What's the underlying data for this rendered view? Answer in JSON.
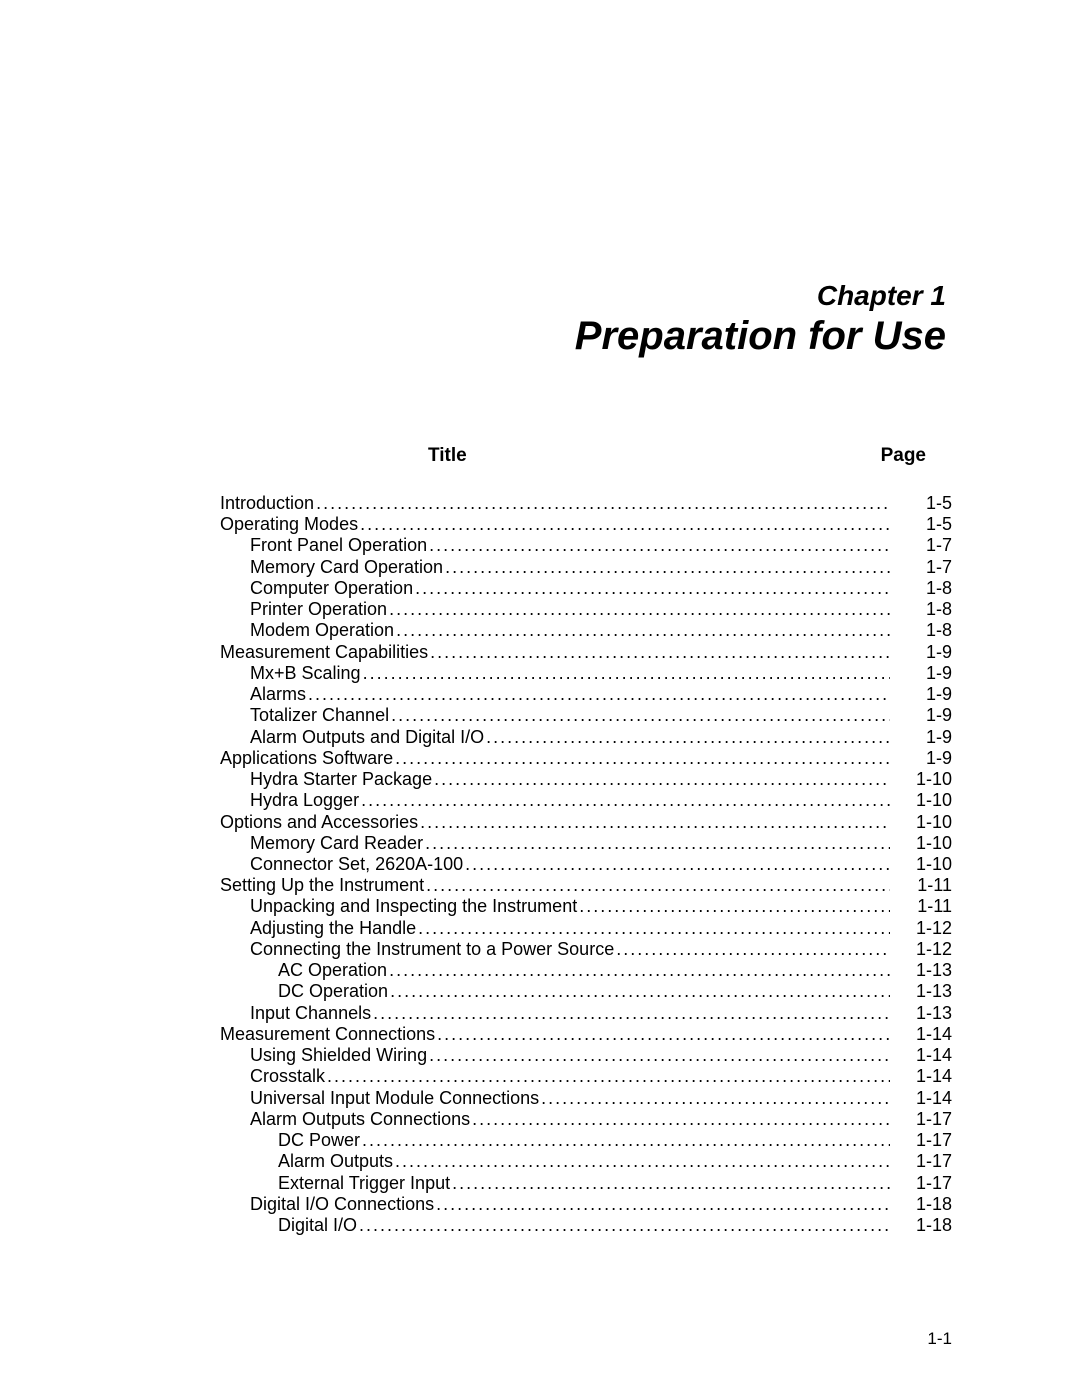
{
  "chapter_label": "Chapter 1",
  "chapter_title": "Preparation for Use",
  "header_title": "Title",
  "header_page": "Page",
  "page_number": "1-1",
  "font_family": "Arial, Helvetica, sans-serif",
  "text_color": "#000000",
  "background_color": "#ffffff",
  "title_fontsize_pt": 30,
  "label_fontsize_pt": 21,
  "body_fontsize_pt": 14,
  "header_fontsize_pt": 14,
  "toc": [
    {
      "title": "Introduction",
      "page": "1-5",
      "level": 0
    },
    {
      "title": "Operating Modes",
      "page": "1-5",
      "level": 0
    },
    {
      "title": "Front Panel Operation",
      "page": "1-7",
      "level": 1
    },
    {
      "title": "Memory Card Operation",
      "page": "1-7",
      "level": 1
    },
    {
      "title": "Computer Operation",
      "page": "1-8",
      "level": 1
    },
    {
      "title": "Printer Operation",
      "page": "1-8",
      "level": 1
    },
    {
      "title": "Modem Operation",
      "page": "1-8",
      "level": 1
    },
    {
      "title": "Measurement Capabilities",
      "page": "1-9",
      "level": 0
    },
    {
      "title": "Mx+B Scaling",
      "page": "1-9",
      "level": 1
    },
    {
      "title": "Alarms",
      "page": "1-9",
      "level": 1
    },
    {
      "title": "Totalizer Channel",
      "page": "1-9",
      "level": 1
    },
    {
      "title": "Alarm Outputs and Digital I/O",
      "page": "1-9",
      "level": 1
    },
    {
      "title": "Applications Software",
      "page": "1-9",
      "level": 0
    },
    {
      "title": "Hydra Starter Package",
      "page": "1-10",
      "level": 1
    },
    {
      "title": "Hydra Logger",
      "page": "1-10",
      "level": 1
    },
    {
      "title": "Options and Accessories",
      "page": "1-10",
      "level": 0
    },
    {
      "title": "Memory Card Reader",
      "page": "1-10",
      "level": 1
    },
    {
      "title": "Connector Set, 2620A-100",
      "page": "1-10",
      "level": 1
    },
    {
      "title": "Setting Up the Instrument",
      "page": "1-11",
      "level": 0
    },
    {
      "title": "Unpacking and Inspecting the Instrument",
      "page": "1-11",
      "level": 1
    },
    {
      "title": "Adjusting the Handle",
      "page": "1-12",
      "level": 1
    },
    {
      "title": "Connecting the Instrument to a Power Source",
      "page": "1-12",
      "level": 1
    },
    {
      "title": "AC Operation",
      "page": "1-13",
      "level": 2
    },
    {
      "title": "DC Operation",
      "page": "1-13",
      "level": 2
    },
    {
      "title": "Input Channels",
      "page": "1-13",
      "level": 1
    },
    {
      "title": "Measurement Connections",
      "page": "1-14",
      "level": 0
    },
    {
      "title": "Using Shielded Wiring",
      "page": "1-14",
      "level": 1
    },
    {
      "title": "Crosstalk",
      "page": "1-14",
      "level": 1
    },
    {
      "title": "Universal Input Module Connections",
      "page": "1-14",
      "level": 1
    },
    {
      "title": "Alarm Outputs Connections",
      "page": "1-17",
      "level": 1
    },
    {
      "title": "DC Power",
      "page": "1-17",
      "level": 2
    },
    {
      "title": "Alarm Outputs",
      "page": "1-17",
      "level": 2
    },
    {
      "title": "External Trigger Input",
      "page": "1-17",
      "level": 2
    },
    {
      "title": "Digital I/O Connections",
      "page": "1-18",
      "level": 1
    },
    {
      "title": "Digital I/O",
      "page": "1-18",
      "level": 2
    }
  ]
}
